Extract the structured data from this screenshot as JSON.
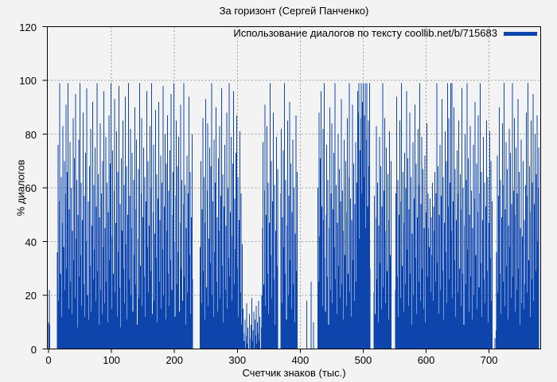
{
  "colors": {
    "background": "#f3f3f3",
    "bar": "#0d45ac",
    "grid": "#9e9e9e",
    "axis": "#000000",
    "text": "#000000"
  },
  "chart_data": {
    "type": "bar",
    "title": "За горизонт (Сергей Панченко)",
    "xlabel": "Счетчик знаков (тыс.)",
    "ylabel": "% диалогов",
    "xlim": [
      0,
      782
    ],
    "ylim": [
      0,
      120
    ],
    "x_ticks": [
      0,
      100,
      200,
      300,
      400,
      500,
      600,
      700
    ],
    "y_ticks": [
      0,
      20,
      40,
      60,
      80,
      100,
      120
    ],
    "grid": "dashed",
    "legend_position": "top-right-inside",
    "x_start": 0,
    "x_step": 1,
    "series": [
      {
        "name": "Использование диалогов по тексту coollib.net/b/715683",
        "color": "#0d45ac",
        "values": [
          10,
          22,
          9,
          0,
          0,
          0,
          0,
          0,
          0,
          0,
          0,
          0,
          0,
          0,
          36,
          76,
          18,
          55,
          99,
          28,
          64,
          12,
          47,
          83,
          38,
          70,
          22,
          58,
          91,
          30,
          66,
          99,
          15,
          52,
          77,
          25,
          60,
          13,
          44,
          86,
          33,
          71,
          19,
          95,
          41,
          63,
          8,
          50,
          78,
          27,
          99,
          35,
          62,
          16,
          48,
          88,
          24,
          57,
          12,
          73,
          40,
          97,
          20,
          55,
          11,
          68,
          31,
          82,
          14,
          46,
          92,
          26,
          61,
          37,
          75,
          18,
          53,
          99,
          29,
          65,
          9,
          49,
          84,
          22,
          58,
          13,
          70,
          38,
          96,
          17,
          45,
          79,
          25,
          62,
          10,
          51,
          87,
          33,
          69,
          99,
          42,
          15,
          74,
          28,
          59,
          93,
          21,
          47,
          81,
          12,
          66,
          36,
          98,
          23,
          54,
          8,
          71,
          44,
          85,
          30,
          61,
          17,
          94,
          39,
          68,
          11,
          50,
          99,
          26,
          57,
          82,
          20,
          45,
          73,
          14,
          63,
          35,
          90,
          24,
          52,
          78,
          9,
          41,
          67,
          19,
          99,
          31,
          58,
          86,
          16,
          49,
          75,
          27,
          64,
          12,
          55,
          96,
          38,
          70,
          21,
          46,
          83,
          29,
          60,
          99,
          13,
          51,
          76,
          18,
          43,
          89,
          34,
          65,
          10,
          56,
          92,
          25,
          48,
          72,
          15,
          62,
          37,
          98,
          20,
          53,
          80,
          11,
          69,
          44,
          87,
          28,
          59,
          16,
          74,
          33,
          95,
          22,
          50,
          66,
          99,
          40,
          12,
          57,
          85,
          24,
          68,
          36,
          79,
          14,
          47,
          91,
          30,
          63,
          18,
          54,
          99,
          27,
          61,
          9,
          45,
          72,
          21,
          58,
          94,
          35,
          66,
          13,
          49,
          80,
          26,
          0,
          0,
          0,
          0,
          0,
          0,
          0,
          0,
          0,
          0,
          0,
          38,
          70,
          17,
          52,
          86,
          29,
          64,
          11,
          47,
          93,
          23,
          59,
          84,
          16,
          41,
          75,
          32,
          68,
          99,
          20,
          55,
          12,
          78,
          36,
          62,
          90,
          25,
          49,
          14,
          71,
          44,
          83,
          19,
          57,
          97,
          31,
          65,
          10,
          53,
          76,
          22,
          46,
          88,
          15,
          60,
          34,
          99,
          27,
          51,
          79,
          18,
          42,
          69,
          96,
          24,
          56,
          37,
          73,
          87,
          30,
          64,
          12,
          48,
          81,
          21,
          58,
          9,
          39,
          15,
          6,
          3,
          11,
          0,
          5,
          17,
          2,
          8,
          0,
          13,
          4,
          0,
          9,
          19,
          3,
          7,
          14,
          0,
          11,
          5,
          16,
          2,
          10,
          6,
          18,
          3,
          12,
          0,
          8,
          20,
          45,
          77,
          24,
          59,
          91,
          16,
          50,
          83,
          28,
          62,
          13,
          47,
          99,
          35,
          70,
          19,
          55,
          88,
          26,
          61,
          9,
          44,
          79,
          31,
          67,
          0,
          0,
          0,
          0,
          58,
          82,
          17,
          49,
          74,
          38,
          99,
          28,
          63,
          11,
          46,
          85,
          20,
          57,
          92,
          33,
          69,
          15,
          51,
          78,
          24,
          60,
          10,
          43,
          87,
          29,
          66,
          0,
          0,
          0,
          0,
          0,
          0,
          0,
          0,
          0,
          0,
          0,
          0,
          0,
          0,
          18,
          0,
          0,
          0,
          0,
          0,
          0,
          25,
          0,
          0,
          0,
          10,
          0,
          0,
          0,
          0,
          0,
          0,
          60,
          25,
          88,
          42,
          71,
          96,
          53,
          16,
          82,
          48,
          99,
          34,
          14,
          50,
          76,
          27,
          63,
          9,
          45,
          90,
          22,
          58,
          84,
          17,
          52,
          73,
          38,
          99,
          26,
          61,
          13,
          47,
          80,
          31,
          67,
          19,
          55,
          93,
          24,
          59,
          11,
          44,
          78,
          35,
          70,
          16,
          51,
          86,
          28,
          64,
          99,
          21,
          56,
          12,
          48,
          91,
          33,
          69,
          18,
          54,
          77,
          25,
          62,
          96,
          88,
          99,
          41,
          74,
          86,
          99,
          58,
          92,
          99,
          64,
          87,
          99,
          45,
          78,
          99,
          53,
          85,
          68,
          99,
          30,
          0,
          0,
          0,
          0,
          0,
          21,
          57,
          13,
          49,
          83,
          26,
          62,
          10,
          46,
          79,
          32,
          68,
          15,
          53,
          99,
          23,
          59,
          86,
          17,
          44,
          75,
          29,
          65,
          11,
          48,
          81,
          35,
          70,
          0,
          0,
          0,
          0,
          0,
          0,
          22,
          58,
          94,
          27,
          63,
          12,
          50,
          85,
          19,
          55,
          99,
          31,
          66,
          14,
          47,
          73,
          24,
          60,
          96,
          37,
          71,
          16,
          52,
          88,
          28,
          64,
          9,
          43,
          77,
          20,
          56,
          91,
          34,
          69,
          13,
          49,
          82,
          25,
          61,
          99,
          18,
          54,
          79,
          30,
          67,
          15,
          45,
          72,
          10,
          51,
          84,
          27,
          58,
          45,
          38,
          56,
          21,
          49,
          35,
          62,
          18,
          53,
          44,
          66,
          25,
          58,
          99,
          32,
          68,
          13,
          50,
          76,
          22,
          57,
          93,
          29,
          64,
          11,
          47,
          81,
          36,
          70,
          17,
          99,
          53,
          86,
          26,
          62,
          99,
          44,
          99,
          19,
          55,
          90,
          33,
          67,
          12,
          48,
          74,
          21,
          58,
          85,
          30,
          65,
          16,
          52,
          97,
          28,
          60,
          9,
          46,
          80,
          24,
          63,
          99,
          37,
          71,
          14,
          50,
          83,
          27,
          59,
          11,
          45,
          76,
          20,
          56,
          92,
          35,
          69,
          15,
          51,
          87,
          23,
          58,
          99,
          32,
          66,
          12,
          48,
          79,
          26,
          62,
          17,
          53,
          85,
          29,
          64,
          10,
          47,
          81,
          34,
          70,
          18,
          55,
          0,
          0,
          0,
          4,
          0,
          7,
          36,
          72,
          21,
          57,
          90,
          28,
          63,
          13,
          49,
          84,
          25,
          61,
          99,
          16,
          52,
          77,
          31,
          67,
          11,
          46,
          82,
          38,
          73,
          19,
          54,
          99,
          27,
          59,
          86,
          14,
          50,
          75,
          22,
          58,
          93,
          30,
          66,
          9,
          45,
          78,
          17,
          42,
          70,
          15,
          48,
          24,
          61,
          88,
          21,
          57,
          99,
          33,
          68,
          12,
          51,
          85,
          26,
          62,
          95,
          18,
          54,
          80,
          29,
          65,
          87,
          40,
          60,
          75
        ]
      }
    ]
  }
}
